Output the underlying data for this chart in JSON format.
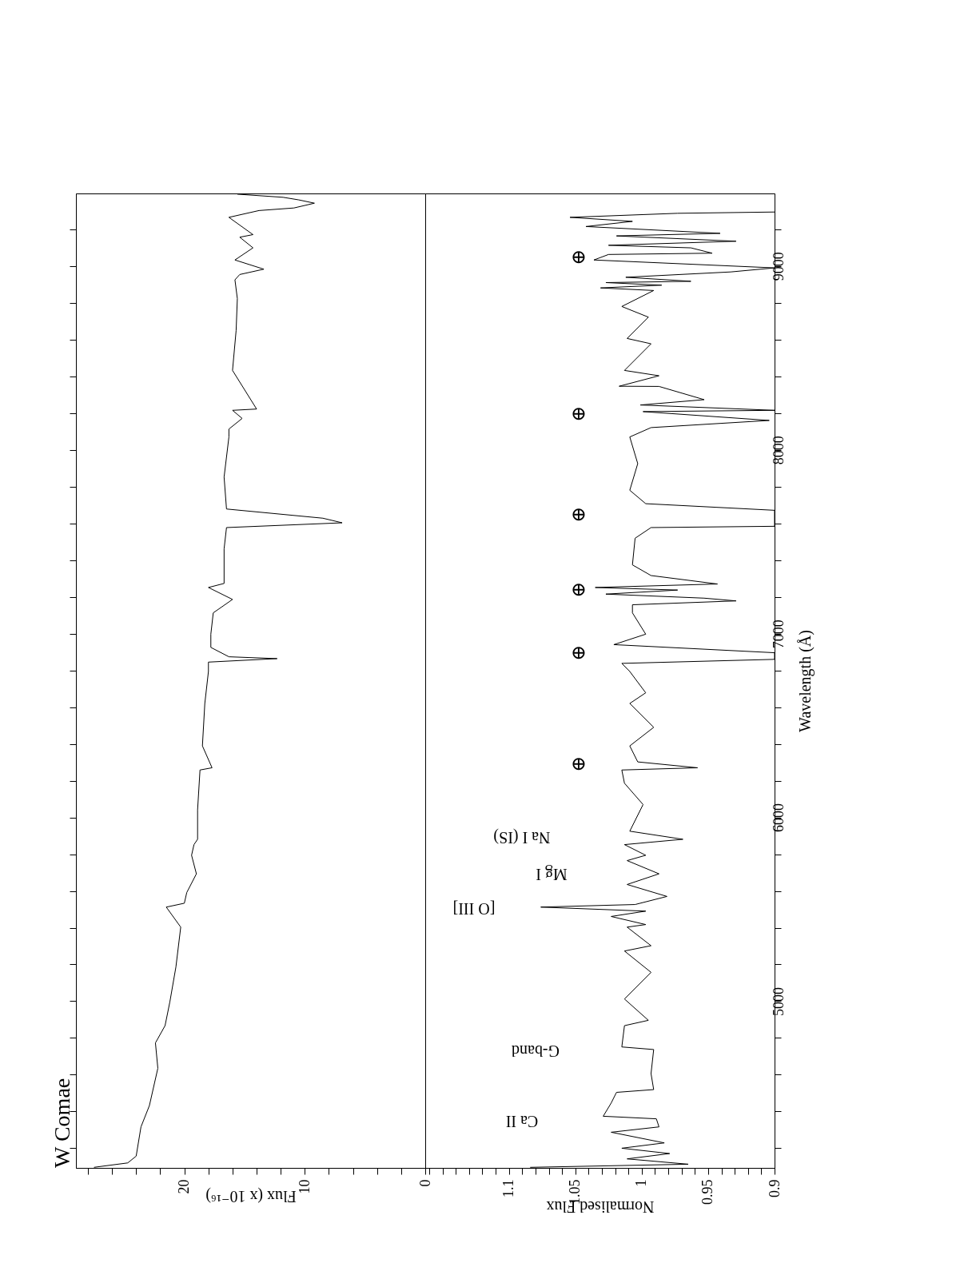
{
  "chart_data": [
    {
      "type": "line",
      "title": "W Comae",
      "xlabel": "Flux (x 10⁻¹⁶)",
      "tick_labels": "x",
      "xlim": [
        29,
        0
      ],
      "ylim": [
        4093,
        9395
      ],
      "xticks": [
        0,
        {
          "value": 2,
          "label": null
        },
        {
          "value": 4,
          "label": null
        },
        {
          "value": 6,
          "label": null
        },
        {
          "value": 8,
          "label": null
        },
        10,
        {
          "value": 12,
          "label": null
        },
        {
          "value": 14,
          "label": null
        },
        {
          "value": 16,
          "label": null
        },
        {
          "value": 18,
          "label": null
        },
        20,
        {
          "value": 22,
          "label": null
        },
        {
          "value": 24,
          "label": null
        },
        {
          "value": 26,
          "label": null
        },
        {
          "value": 28,
          "label": null
        }
      ],
      "yticks": [
        {
          "value": 4200,
          "label": null
        },
        {
          "value": 4400,
          "label": null
        },
        {
          "value": 4600,
          "label": null
        },
        {
          "value": 4800,
          "label": null
        },
        {
          "value": 5000,
          "label": null
        },
        {
          "value": 5200,
          "label": null
        },
        {
          "value": 5400,
          "label": null
        },
        {
          "value": 5600,
          "label": null
        },
        {
          "value": 5800,
          "label": null
        },
        {
          "value": 6000,
          "label": null
        },
        {
          "value": 6200,
          "label": null
        },
        {
          "value": 6400,
          "label": null
        },
        {
          "value": 6600,
          "label": null
        },
        {
          "value": 6800,
          "label": null
        },
        {
          "value": 7000,
          "label": null
        },
        {
          "value": 7200,
          "label": null
        },
        {
          "value": 7400,
          "label": null
        },
        {
          "value": 7600,
          "label": null
        },
        {
          "value": 7800,
          "label": null
        },
        {
          "value": 8000,
          "label": null
        },
        {
          "value": 8200,
          "label": null
        },
        {
          "value": 8400,
          "label": null
        },
        {
          "value": 8600,
          "label": null
        },
        {
          "value": 8800,
          "label": null
        },
        {
          "value": 9000,
          "label": null
        },
        {
          "value": 9200,
          "label": null
        }
      ],
      "series": [
        {
          "color": "#000000",
          "values": [
            4096,
            4120,
            4157,
            4316,
            4432,
            4635,
            4773,
            4867,
            4997,
            5186,
            5403,
            5512,
            5533,
            5591,
            5693,
            5794,
            5852,
            5881,
            6041,
            6258,
            6270,
            6389,
            6620,
            6794,
            6845,
            6864,
            6874,
            6925,
            6997,
            7113,
            7186,
            7251,
            7273,
            7461,
            7577,
            7603,
            7628,
            7678,
            7852,
            8070,
            8113,
            8171,
            8215,
            8222,
            8432,
            8650,
            8823,
            8925,
            8954,
            8983,
            9033,
            9099,
            9157,
            9171,
            9265,
            9302,
            9316,
            9342,
            9360,
            9374,
            9391
          ],
          "x": [
            27.5,
            24.7,
            24.0,
            23.6,
            22.9,
            22.2,
            22.4,
            21.6,
            21.2,
            20.7,
            20.3,
            21.5,
            20.0,
            19.8,
            19.0,
            19.4,
            19.2,
            18.9,
            18.9,
            18.7,
            17.7,
            18.5,
            18.3,
            18.0,
            18.0,
            12.3,
            16.3,
            17.8,
            17.8,
            17.6,
            16.0,
            18.0,
            16.7,
            16.7,
            16.5,
            6.9,
            8.5,
            16.5,
            16.7,
            16.3,
            16.3,
            15.2,
            16.0,
            14.0,
            16.0,
            15.7,
            15.6,
            15.8,
            15.4,
            13.4,
            15.8,
            14.3,
            15.4,
            14.3,
            16.3,
            13.8,
            10.9,
            9.2,
            10.5,
            11.8,
            15.6
          ]
        }
      ]
    },
    {
      "type": "line",
      "xlabel": "Normalised Flux",
      "ylabel": "Wavelength (Å)",
      "xlim": [
        1.163,
        0.9
      ],
      "ylim": [
        4093,
        9395
      ],
      "xticks": [
        0.9,
        {
          "value": 0.91,
          "label": null
        },
        {
          "value": 0.92,
          "label": null
        },
        {
          "value": 0.93,
          "label": null
        },
        {
          "value": 0.94,
          "label": null
        },
        0.95,
        {
          "value": 0.96,
          "label": null
        },
        {
          "value": 0.97,
          "label": null
        },
        {
          "value": 0.98,
          "label": null
        },
        {
          "value": 0.99,
          "label": null
        },
        1,
        {
          "value": 1.01,
          "label": null
        },
        {
          "value": 1.02,
          "label": null
        },
        {
          "value": 1.03,
          "label": null
        },
        {
          "value": 1.04,
          "label": null
        },
        1.05,
        {
          "value": 1.06,
          "label": null
        },
        {
          "value": 1.07,
          "label": null
        },
        {
          "value": 1.08,
          "label": null
        },
        {
          "value": 1.09,
          "label": null
        },
        1.1,
        {
          "value": 1.11,
          "label": null
        },
        {
          "value": 1.12,
          "label": null
        },
        {
          "value": 1.13,
          "label": null
        },
        {
          "value": 1.14,
          "label": null
        },
        {
          "value": 1.15,
          "label": null
        },
        {
          "value": 1.16,
          "label": null
        }
      ],
      "yticks": [
        {
          "value": 4200,
          "label": null
        },
        {
          "value": 4400,
          "label": null
        },
        {
          "value": 4600,
          "label": null
        },
        {
          "value": 4800,
          "label": null
        },
        5000,
        {
          "value": 5200,
          "label": null
        },
        {
          "value": 5400,
          "label": null
        },
        {
          "value": 5600,
          "label": null
        },
        {
          "value": 5800,
          "label": null
        },
        6000,
        {
          "value": 6200,
          "label": null
        },
        {
          "value": 6400,
          "label": null
        },
        {
          "value": 6600,
          "label": null
        },
        {
          "value": 6800,
          "label": null
        },
        7000,
        {
          "value": 7200,
          "label": null
        },
        {
          "value": 7400,
          "label": null
        },
        {
          "value": 7600,
          "label": null
        },
        {
          "value": 7800,
          "label": null
        },
        8000,
        {
          "value": 8200,
          "label": null
        },
        {
          "value": 8400,
          "label": null
        },
        {
          "value": 8600,
          "label": null
        },
        {
          "value": 8800,
          "label": null
        },
        9000,
        {
          "value": 9200,
          "label": null
        }
      ],
      "series": [
        {
          "color": "#000000",
          "values": [
            4096,
            4113,
            4142,
            4171,
            4200,
            4229,
            4287,
            4316,
            4360,
            4374,
            4446,
            4504,
            4519,
            4606,
            4737,
            4751,
            4867,
            4896,
            5012,
            5157,
            5273,
            5302,
            5403,
            5417,
            5461,
            5490,
            5512,
            5526,
            5570,
            5635,
            5693,
            5765,
            5794,
            5852,
            5881,
            5925,
            6070,
            6186,
            6258,
            6270,
            6302,
            6389,
            6490,
            6620,
            6678,
            6794,
            6838,
            6860,
            6896,
            6940,
            6997,
            7113,
            7157,
            7178,
            7193,
            7215,
            7237,
            7251,
            7270,
            7316,
            7374,
            7519,
            7577,
            7584,
            7671,
            7707,
            7780,
            7925,
            8070,
            8121,
            8160,
            8208,
            8215,
            8244,
            8273,
            8345,
            8346,
            8403,
            8432,
            8577,
            8606,
            8722,
            8780,
            8867,
            8881,
            8896,
            8910,
            8917,
            8939,
            8968,
            8990,
            9033,
            9063,
            9070,
            9099,
            9113,
            9135,
            9164,
            9178,
            9215,
            9243,
            9265,
            9287,
            9294
          ],
          "x": [
            1.084,
            0.965,
            1.011,
            0.979,
            1.015,
            0.983,
            1.023,
            0.987,
            0.989,
            1.029,
            1.023,
            1.019,
            0.991,
            0.993,
            0.991,
            1.015,
            1.013,
            0.995,
            1.013,
            0.993,
            1.013,
            0.993,
            1.011,
            0.997,
            1.023,
            0.997,
            1.076,
            1.005,
            0.981,
            1.011,
            0.987,
            1.011,
            0.997,
            1.013,
            0.969,
            1.009,
            0.999,
            1.013,
            1.015,
            0.958,
            1.003,
            1.009,
            0.991,
            1.009,
            0.997,
            1.009,
            1.015,
            0.9,
            0.9,
            1.021,
            0.997,
            1.007,
            1.007,
            0.929,
            0.953,
            1.027,
            0.973,
            1.035,
            0.943,
            0.993,
            1.007,
            1.005,
            0.993,
            0.9,
            0.9,
            0.997,
            1.009,
            1.003,
            1.009,
            0.993,
            0.904,
            0.999,
            0.9,
            1.001,
            0.953,
            0.987,
            1.017,
            0.987,
            1.013,
            0.993,
            1.011,
            0.995,
            1.015,
            0.991,
            1.031,
            0.985,
            1.027,
            0.963,
            1.012,
            0.933,
            0.9,
            1.036,
            1.025,
            0.947,
            0.963,
            1.025,
            0.929,
            1.019,
            0.941,
            1.042,
            1.007,
            1.054,
            0.973,
            0.9
          ]
        }
      ],
      "annotations": [
        "Ca II",
        "G-band",
        "[O III]",
        "Mg I",
        "Na I (IS)",
        "⊕",
        "⊕",
        "⊕",
        "⊕",
        "⊕",
        "⊕"
      ]
    }
  ]
}
